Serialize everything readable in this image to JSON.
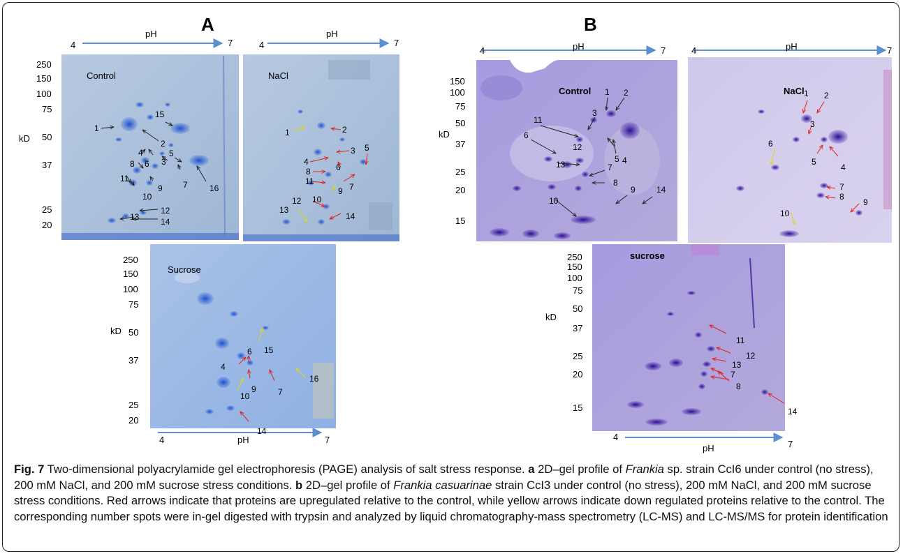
{
  "figure": {
    "panel_a": "A",
    "panel_b": "B",
    "axis": {
      "ph_label": "pH",
      "ph_low": "4",
      "ph_high": "7",
      "mw_unit": "kD"
    },
    "gels": {
      "a_control": {
        "condition": "Control",
        "mw": [
          "250",
          "150",
          "100",
          "75",
          "50",
          "37",
          "25",
          "20"
        ]
      },
      "a_nacl": {
        "condition": "NaCl"
      },
      "a_sucrose": {
        "condition": "Sucrose",
        "mw": [
          "250",
          "150",
          "100",
          "75",
          "50",
          "37",
          "25",
          "20"
        ]
      },
      "b_control": {
        "condition": "Control",
        "mw": [
          "150",
          "100",
          "75",
          "50",
          "37",
          "25",
          "20",
          "15"
        ]
      },
      "b_nacl": {
        "condition": "NaCl"
      },
      "b_sucrose": {
        "condition": "sucrose",
        "mw": [
          "250",
          "150",
          "100",
          "75",
          "50",
          "37",
          "25",
          "20",
          "15"
        ]
      }
    },
    "caption": {
      "fig_label": "Fig. 7",
      "title": " Two-dimensional polyacrylamide gel electrophoresis (PAGE) analysis of salt stress response. ",
      "a_letter": "a",
      "a_text_1": " 2D–gel profile of ",
      "a_organism": "Frankia",
      "a_text_2": " sp. strain CcI6 under control (no stress), 200 mM NaCl, and 200 mM sucrose stress conditions. ",
      "b_letter": "b",
      "b_text_1": " 2D–gel profile of ",
      "b_organism": "Frankia casuarinae",
      "b_text_2": " strain CcI3 under control (no stress), 200 mM NaCl, and 200 mM sucrose stress conditions. Red arrows indicate that proteins are upregulated relative to the control, while yellow arrows indicate down regulated proteins relative to the control. The corresponding number spots were in-gel digested with trypsin and analyzed by liquid chromatography-mass spectrometry (LC-MS) and LC-MS/MS for protein identification"
    }
  },
  "colors": {
    "gel_a": "#a9c0dc",
    "gel_b": "#a59ad4",
    "spot_a": "#2a5fd6",
    "spot_b": "#3b1aa8",
    "up_arrow": "#e02020",
    "down_arrow": "#e8e020",
    "neutral_arrow": "#222222",
    "ph_arrow": "#5b8fd0"
  }
}
